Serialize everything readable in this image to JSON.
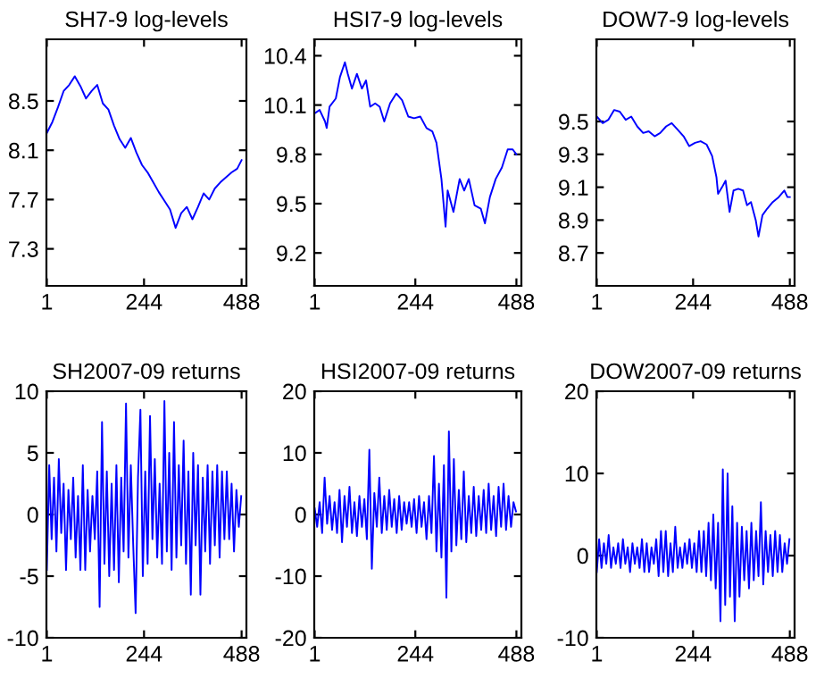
{
  "chart_data": [
    {
      "type": "line",
      "title": "SH7-9 log-levels",
      "xlim": [
        0,
        500
      ],
      "xticks": [
        1,
        244,
        488
      ],
      "ylim": [
        7,
        9
      ],
      "yticks": [
        7.3,
        7.7,
        8.1,
        8.5
      ],
      "grid": false,
      "legend": false,
      "series": [
        {
          "color": "#0000ff",
          "x": [
            1,
            15,
            29,
            43,
            57,
            71,
            85,
            99,
            113,
            127,
            141,
            155,
            169,
            183,
            197,
            211,
            225,
            239,
            253,
            267,
            281,
            295,
            309,
            323,
            337,
            351,
            365,
            379,
            393,
            407,
            421,
            435,
            449,
            463,
            477,
            488
          ],
          "values": [
            8.24,
            8.33,
            8.45,
            8.58,
            8.63,
            8.7,
            8.62,
            8.52,
            8.58,
            8.63,
            8.48,
            8.43,
            8.3,
            8.19,
            8.12,
            8.2,
            8.08,
            7.98,
            7.92,
            7.84,
            7.76,
            7.69,
            7.62,
            7.47,
            7.59,
            7.64,
            7.54,
            7.64,
            7.75,
            7.7,
            7.79,
            7.84,
            7.88,
            7.92,
            7.95,
            8.02
          ]
        }
      ]
    },
    {
      "type": "line",
      "title": "HSI7-9 log-levels",
      "xlim": [
        0,
        500
      ],
      "xticks": [
        1,
        244,
        488
      ],
      "ylim": [
        9,
        10.5
      ],
      "yticks": [
        9.2,
        9.5,
        9.8,
        10.1,
        10.4
      ],
      "grid": false,
      "legend": false,
      "series": [
        {
          "color": "#0000ff",
          "x": [
            1,
            13,
            26,
            30,
            37,
            52,
            62,
            74,
            81,
            91,
            103,
            115,
            125,
            135,
            147,
            158,
            169,
            183,
            198,
            212,
            227,
            241,
            256,
            271,
            285,
            295,
            307,
            317,
            322,
            336,
            351,
            362,
            373,
            387,
            402,
            412,
            424,
            438,
            453,
            467,
            479,
            488
          ],
          "values": [
            10.05,
            10.07,
            10.0,
            9.96,
            10.09,
            10.14,
            10.27,
            10.36,
            10.29,
            10.2,
            10.29,
            10.2,
            10.25,
            10.09,
            10.11,
            10.09,
            10.0,
            10.11,
            10.17,
            10.13,
            10.03,
            10.02,
            10.03,
            9.96,
            9.94,
            9.87,
            9.65,
            9.36,
            9.58,
            9.45,
            9.65,
            9.58,
            9.65,
            9.49,
            9.47,
            9.38,
            9.54,
            9.65,
            9.72,
            9.83,
            9.83,
            9.8
          ]
        }
      ]
    },
    {
      "type": "line",
      "title": "DOW7-9 log-levels",
      "xlim": [
        0,
        500
      ],
      "xticks": [
        1,
        244,
        488
      ],
      "ylim": [
        8.5,
        10
      ],
      "yticks": [
        8.7,
        8.9,
        9.1,
        9.3,
        9.5
      ],
      "grid": false,
      "legend": false,
      "series": [
        {
          "color": "#0000ff",
          "x": [
            1,
            16,
            30,
            45,
            59,
            74,
            88,
            103,
            118,
            132,
            147,
            161,
            176,
            190,
            205,
            220,
            234,
            249,
            263,
            278,
            292,
            303,
            307,
            317,
            326,
            336,
            346,
            358,
            370,
            380,
            390,
            402,
            409,
            419,
            431,
            445,
            460,
            474,
            482,
            488
          ],
          "values": [
            9.53,
            9.49,
            9.51,
            9.57,
            9.56,
            9.51,
            9.53,
            9.47,
            9.43,
            9.44,
            9.41,
            9.43,
            9.47,
            9.49,
            9.45,
            9.41,
            9.35,
            9.37,
            9.38,
            9.36,
            9.29,
            9.16,
            9.06,
            9.1,
            9.14,
            8.95,
            9.08,
            9.09,
            9.08,
            8.99,
            9.01,
            8.9,
            8.8,
            8.93,
            8.97,
            9.01,
            9.04,
            9.08,
            9.04,
            9.04
          ]
        }
      ]
    },
    {
      "type": "line",
      "title": "SH2007-09 returns",
      "xlim": [
        0,
        500
      ],
      "xticks": [
        1,
        244,
        488
      ],
      "ylim": [
        -10,
        10
      ],
      "yticks": [
        -10,
        -5,
        0,
        5,
        10
      ],
      "grid": false,
      "legend": false,
      "series": [
        {
          "color": "#0000ff",
          "x": [
            1,
            7,
            13,
            19,
            25,
            31,
            37,
            43,
            49,
            55,
            61,
            67,
            73,
            79,
            85,
            91,
            97,
            103,
            109,
            115,
            121,
            127,
            133,
            139,
            145,
            151,
            157,
            163,
            169,
            175,
            181,
            187,
            193,
            199,
            205,
            211,
            217,
            223,
            229,
            235,
            241,
            247,
            253,
            259,
            265,
            271,
            277,
            283,
            289,
            295,
            301,
            307,
            313,
            319,
            325,
            331,
            337,
            343,
            349,
            355,
            361,
            367,
            373,
            379,
            385,
            391,
            397,
            403,
            409,
            415,
            421,
            427,
            433,
            439,
            445,
            451,
            457,
            463,
            469,
            475,
            481,
            487
          ],
          "values": [
            -4.5,
            4,
            -2,
            3,
            -3,
            4.5,
            -1.5,
            2.5,
            -4.5,
            2,
            -2,
            3,
            -3.5,
            1.5,
            -4.5,
            4,
            -4.5,
            2,
            -3,
            1.5,
            -2,
            3.5,
            -7.5,
            7.5,
            -4,
            3.5,
            -5,
            2.5,
            -4.5,
            4,
            -5.5,
            3,
            -3,
            9,
            -3.5,
            4,
            -2.5,
            -8,
            3,
            8.5,
            -5,
            3.5,
            -4,
            8,
            -2,
            4.5,
            -3.5,
            2.5,
            -4,
            9.2,
            -3,
            5,
            -4.5,
            7.5,
            -3.5,
            4,
            -2.5,
            6,
            -4,
            3.5,
            -6.5,
            5,
            -2.5,
            4,
            -6.5,
            3,
            -3,
            4,
            -4,
            3.5,
            -2.5,
            4,
            -3.5,
            3.5,
            -2,
            3.5,
            -2,
            2.5,
            -3,
            2,
            -1,
            1.5
          ]
        }
      ]
    },
    {
      "type": "line",
      "title": "HSI2007-09 returns",
      "xlim": [
        0,
        500
      ],
      "xticks": [
        1,
        244,
        488
      ],
      "ylim": [
        -20,
        20
      ],
      "yticks": [
        -20,
        -10,
        0,
        10,
        20
      ],
      "grid": false,
      "legend": false,
      "series": [
        {
          "color": "#0000ff",
          "x": [
            1,
            7,
            13,
            19,
            25,
            31,
            37,
            43,
            49,
            55,
            61,
            67,
            73,
            79,
            85,
            91,
            97,
            103,
            109,
            115,
            121,
            127,
            133,
            139,
            145,
            151,
            157,
            163,
            169,
            175,
            181,
            187,
            193,
            199,
            205,
            211,
            217,
            223,
            229,
            235,
            241,
            247,
            253,
            259,
            265,
            271,
            277,
            283,
            289,
            295,
            301,
            307,
            313,
            319,
            325,
            331,
            337,
            343,
            349,
            355,
            361,
            367,
            373,
            379,
            385,
            391,
            397,
            403,
            409,
            415,
            421,
            427,
            433,
            439,
            445,
            451,
            457,
            463,
            469,
            475,
            481,
            487
          ],
          "values": [
            1,
            -2,
            2,
            -3,
            6,
            -1.5,
            3,
            -2.5,
            2,
            -3,
            4,
            -4.5,
            3,
            -2,
            4.5,
            -3,
            2,
            -3.5,
            3,
            -2,
            2.5,
            -4,
            10.5,
            -8.8,
            3.5,
            -2,
            6,
            -3,
            3,
            -2.5,
            4,
            -2,
            2.5,
            -3,
            3,
            -2.5,
            2,
            -1.5,
            2,
            -2,
            2.5,
            -3,
            3,
            -2,
            2,
            -4,
            3,
            -3,
            9.5,
            -6,
            5,
            -7,
            8,
            -13.5,
            13.5,
            -6,
            9,
            -5,
            4,
            -4,
            7,
            -4.5,
            3,
            -3,
            4.5,
            -3.5,
            3,
            -2.5,
            4,
            -3,
            5,
            -2.5,
            3,
            -3.5,
            4.5,
            -2,
            5,
            -2.5,
            3,
            -2,
            2,
            0.5
          ]
        }
      ]
    },
    {
      "type": "line",
      "title": "DOW2007-09 returns",
      "xlim": [
        0,
        500
      ],
      "xticks": [
        1,
        244,
        488
      ],
      "ylim": [
        -10,
        20
      ],
      "yticks": [
        -10,
        0,
        10,
        20
      ],
      "grid": false,
      "legend": false,
      "series": [
        {
          "color": "#0000ff",
          "x": [
            1,
            7,
            13,
            19,
            25,
            31,
            37,
            43,
            49,
            55,
            61,
            67,
            73,
            79,
            85,
            91,
            97,
            103,
            109,
            115,
            121,
            127,
            133,
            139,
            145,
            151,
            157,
            163,
            169,
            175,
            181,
            187,
            193,
            199,
            205,
            211,
            217,
            223,
            229,
            235,
            241,
            247,
            253,
            259,
            265,
            271,
            277,
            283,
            289,
            295,
            301,
            307,
            313,
            319,
            325,
            331,
            337,
            343,
            349,
            355,
            361,
            367,
            373,
            379,
            385,
            391,
            397,
            403,
            409,
            415,
            421,
            427,
            433,
            439,
            445,
            451,
            457,
            463,
            469,
            475,
            481,
            487
          ],
          "values": [
            -2,
            2,
            -1.5,
            1.5,
            -1,
            2.5,
            -1.5,
            1,
            -1,
            1.5,
            -1.5,
            2,
            -1,
            1,
            -2,
            1.5,
            -1,
            1,
            -1.5,
            2,
            -2,
            1.5,
            -2,
            1,
            -1,
            2,
            -2.5,
            3,
            -2,
            3,
            -2.5,
            1.5,
            -2,
            3.5,
            -1.5,
            1,
            -1.5,
            1.5,
            -1,
            2,
            -1.5,
            1.5,
            -2,
            3,
            -2,
            3,
            -2.5,
            4,
            -3,
            5,
            -4,
            4,
            -8,
            10.5,
            -6,
            10,
            -5,
            6,
            -8,
            4,
            -5,
            3.5,
            -3,
            3,
            -4,
            4,
            -3,
            3,
            -2.5,
            6.5,
            -3.5,
            3,
            -2,
            2.5,
            -2.5,
            3,
            -2,
            2.5,
            -2,
            1.5,
            -1,
            2
          ]
        }
      ]
    }
  ]
}
